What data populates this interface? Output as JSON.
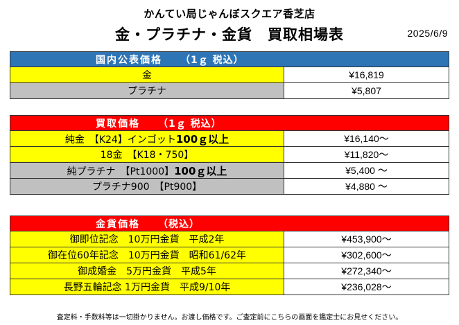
{
  "header": {
    "store_name": "かんてい局じゃんぼスクエア香芝店",
    "title": "金・プラチナ・金貨　買取相場表",
    "date": "2025/6/9"
  },
  "domestic": {
    "header_label": "国内公表価格",
    "header_note": "（1ｇ 税込）",
    "rows": [
      {
        "name": "金",
        "price": "¥16,819"
      },
      {
        "name": "プラチナ",
        "price": "¥5,807"
      }
    ]
  },
  "buy": {
    "header_label": "買取価格",
    "header_note": "（1ｇ 税込）",
    "rows": [
      {
        "name": "純金　【K24】インゴット",
        "name_bold": "100ｇ以上",
        "price": "¥16,140～"
      },
      {
        "name": "18金　【K18・750】",
        "name_bold": "",
        "price": "¥11,820～"
      },
      {
        "name": "純プラチナ　【Pt1000】",
        "name_bold": "100ｇ以上",
        "price": "¥5,400 ～"
      },
      {
        "name": "プラチナ900　【Pt900】",
        "name_bold": "",
        "price": "¥4,880 ～"
      }
    ]
  },
  "coin": {
    "header_label": "金貨価格",
    "header_note": "（税込）",
    "rows": [
      {
        "name": "御即位記念　10万円金貨　平成2年",
        "price": "¥453,900～"
      },
      {
        "name": "御在位60年記念　10万円金貨　昭和61/62年",
        "price": "¥302,600～"
      },
      {
        "name": "御成婚金　5万円金貨　平成5年",
        "price": "¥272,340～"
      },
      {
        "name": "長野五輪記念 1万円金貨　平成9/10年",
        "price": "¥236,028～"
      }
    ]
  },
  "footer": {
    "note": "査定料・手数料等は一切掛かりません。お渡し価格です。ご査定前にこちらの画面を鑑定士にお見せください。"
  },
  "colors": {
    "domestic_header": "#2e75b6",
    "red_header": "#ff0000",
    "yellow": "#ffff00",
    "gray": "#c0c0c0"
  }
}
